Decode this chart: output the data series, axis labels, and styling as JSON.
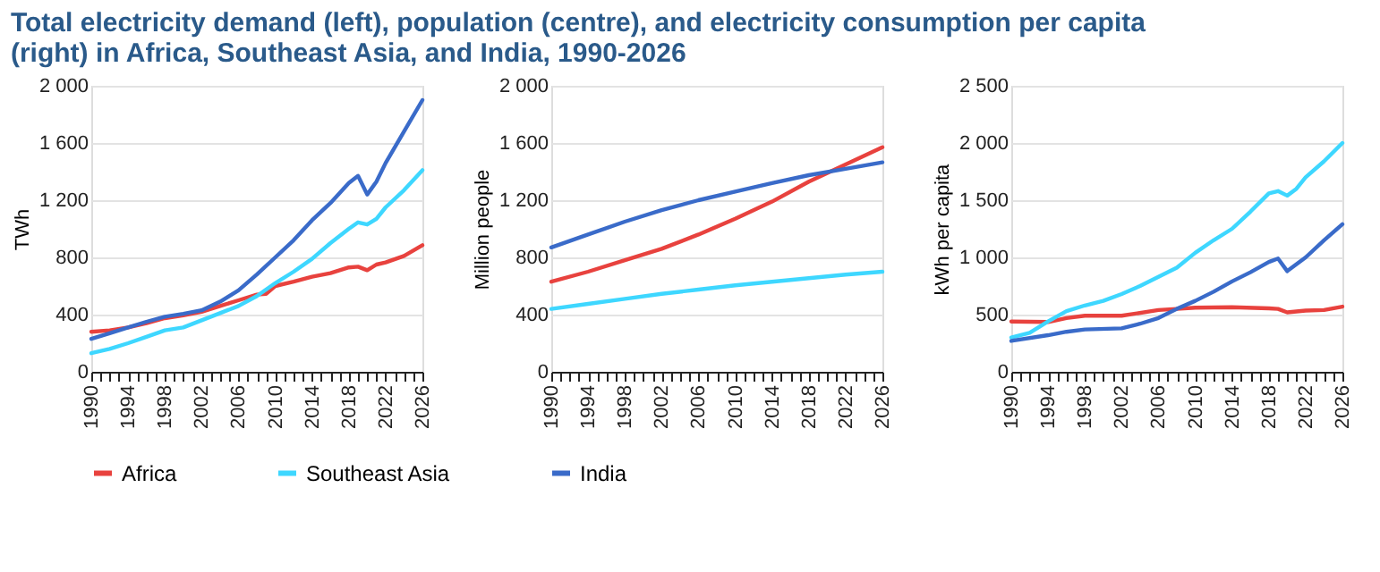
{
  "chart_data": [
    {
      "type": "line",
      "title": "Total electricity demand (left), population (centre), and electricity consumption per capita (right) in Africa, Southeast Asia, and India, 1990-2026",
      "ylabel": "TWh",
      "legend": "bottom",
      "grid": "y",
      "xlim": [
        1990,
        2026
      ],
      "ylim": [
        0,
        2000
      ],
      "xticks": [
        1990,
        {
          "value": 1991,
          "label": null
        },
        {
          "value": 1992,
          "label": null
        },
        {
          "value": 1993,
          "label": null
        },
        1994,
        {
          "value": 1995,
          "label": null
        },
        {
          "value": 1996,
          "label": null
        },
        {
          "value": 1997,
          "label": null
        },
        1998,
        {
          "value": 1999,
          "label": null
        },
        {
          "value": 2000,
          "label": null
        },
        {
          "value": 2001,
          "label": null
        },
        2002,
        {
          "value": 2003,
          "label": null
        },
        {
          "value": 2004,
          "label": null
        },
        {
          "value": 2005,
          "label": null
        },
        2006,
        {
          "value": 2007,
          "label": null
        },
        {
          "value": 2008,
          "label": null
        },
        {
          "value": 2009,
          "label": null
        },
        2010,
        {
          "value": 2011,
          "label": null
        },
        {
          "value": 2012,
          "label": null
        },
        {
          "value": 2013,
          "label": null
        },
        2014,
        {
          "value": 2015,
          "label": null
        },
        {
          "value": 2016,
          "label": null
        },
        {
          "value": 2017,
          "label": null
        },
        2018,
        {
          "value": 2019,
          "label": null
        },
        {
          "value": 2020,
          "label": null
        },
        {
          "value": 2021,
          "label": null
        },
        2022,
        {
          "value": 2023,
          "label": null
        },
        {
          "value": 2024,
          "label": null
        },
        {
          "value": 2025,
          "label": null
        },
        2026
      ],
      "yticks": [
        0,
        400,
        800,
        {
          "value": 1200,
          "label": "1 200"
        },
        {
          "value": 1600,
          "label": "1 600"
        },
        {
          "value": 2000,
          "label": "2 000"
        }
      ],
      "series": [
        {
          "name": "Africa",
          "color": "#e8423e",
          "x": [
            1990,
            1992,
            1994,
            1996,
            1998,
            2000,
            2002,
            2004,
            2006,
            2008,
            2009,
            2010,
            2012,
            2014,
            2016,
            2018,
            2019,
            2020,
            2021,
            2022,
            2024,
            2026
          ],
          "values": [
            280,
            290,
            310,
            340,
            375,
            395,
            420,
            460,
            500,
            540,
            545,
            600,
            630,
            665,
            690,
            730,
            735,
            710,
            750,
            765,
            810,
            885
          ]
        },
        {
          "name": "Southeast Asia",
          "color": "#3ed7ff",
          "x": [
            1990,
            1992,
            1994,
            1996,
            1998,
            2000,
            2002,
            2004,
            2006,
            2008,
            2010,
            2012,
            2014,
            2016,
            2018,
            2019,
            2020,
            2021,
            2022,
            2024,
            2026
          ],
          "values": [
            130,
            160,
            200,
            245,
            290,
            310,
            360,
            410,
            460,
            530,
            620,
            700,
            790,
            900,
            1000,
            1045,
            1030,
            1070,
            1150,
            1270,
            1410
          ]
        },
        {
          "name": "India",
          "color": "#3a6bc9",
          "x": [
            1990,
            1992,
            1994,
            1996,
            1998,
            2000,
            2002,
            2004,
            2006,
            2008,
            2010,
            2012,
            2014,
            2016,
            2018,
            2019,
            2020,
            2021,
            2022,
            2024,
            2026
          ],
          "values": [
            230,
            270,
            310,
            350,
            385,
            405,
            430,
            490,
            570,
            680,
            800,
            920,
            1060,
            1180,
            1320,
            1370,
            1240,
            1330,
            1460,
            1680,
            1900
          ]
        }
      ]
    },
    {
      "type": "line",
      "ylabel": "Million people",
      "legend": "bottom",
      "grid": "y",
      "xlim": [
        1990,
        2026
      ],
      "ylim": [
        0,
        2000
      ],
      "xticks": [
        1990,
        {
          "value": 1991,
          "label": null
        },
        {
          "value": 1992,
          "label": null
        },
        {
          "value": 1993,
          "label": null
        },
        1994,
        {
          "value": 1995,
          "label": null
        },
        {
          "value": 1996,
          "label": null
        },
        {
          "value": 1997,
          "label": null
        },
        1998,
        {
          "value": 1999,
          "label": null
        },
        {
          "value": 2000,
          "label": null
        },
        {
          "value": 2001,
          "label": null
        },
        2002,
        {
          "value": 2003,
          "label": null
        },
        {
          "value": 2004,
          "label": null
        },
        {
          "value": 2005,
          "label": null
        },
        2006,
        {
          "value": 2007,
          "label": null
        },
        {
          "value": 2008,
          "label": null
        },
        {
          "value": 2009,
          "label": null
        },
        2010,
        {
          "value": 2011,
          "label": null
        },
        {
          "value": 2012,
          "label": null
        },
        {
          "value": 2013,
          "label": null
        },
        2014,
        {
          "value": 2015,
          "label": null
        },
        {
          "value": 2016,
          "label": null
        },
        {
          "value": 2017,
          "label": null
        },
        2018,
        {
          "value": 2019,
          "label": null
        },
        {
          "value": 2020,
          "label": null
        },
        {
          "value": 2021,
          "label": null
        },
        2022,
        {
          "value": 2023,
          "label": null
        },
        {
          "value": 2024,
          "label": null
        },
        {
          "value": 2025,
          "label": null
        },
        2026
      ],
      "yticks": [
        0,
        400,
        800,
        {
          "value": 1200,
          "label": "1 200"
        },
        {
          "value": 1600,
          "label": "1 600"
        },
        {
          "value": 2000,
          "label": "2 000"
        }
      ],
      "series": [
        {
          "name": "Africa",
          "color": "#e8423e",
          "x": [
            1990,
            1994,
            1998,
            2002,
            2006,
            2010,
            2014,
            2018,
            2022,
            2026
          ],
          "values": [
            630,
            700,
            780,
            860,
            960,
            1070,
            1190,
            1330,
            1450,
            1570
          ]
        },
        {
          "name": "Southeast Asia",
          "color": "#3ed7ff",
          "x": [
            1990,
            1994,
            1998,
            2002,
            2006,
            2010,
            2014,
            2018,
            2022,
            2026
          ],
          "values": [
            440,
            475,
            510,
            545,
            575,
            605,
            630,
            655,
            680,
            700
          ]
        },
        {
          "name": "India",
          "color": "#3a6bc9",
          "x": [
            1990,
            1994,
            1998,
            2002,
            2006,
            2010,
            2014,
            2018,
            2022,
            2026
          ],
          "values": [
            870,
            960,
            1050,
            1130,
            1200,
            1260,
            1320,
            1375,
            1420,
            1465
          ]
        }
      ]
    },
    {
      "type": "line",
      "ylabel": "kWh per capita",
      "legend": "bottom",
      "grid": "y",
      "xlim": [
        1990,
        2026
      ],
      "ylim": [
        0,
        2500
      ],
      "xticks": [
        1990,
        {
          "value": 1991,
          "label": null
        },
        {
          "value": 1992,
          "label": null
        },
        {
          "value": 1993,
          "label": null
        },
        1994,
        {
          "value": 1995,
          "label": null
        },
        {
          "value": 1996,
          "label": null
        },
        {
          "value": 1997,
          "label": null
        },
        1998,
        {
          "value": 1999,
          "label": null
        },
        {
          "value": 2000,
          "label": null
        },
        {
          "value": 2001,
          "label": null
        },
        2002,
        {
          "value": 2003,
          "label": null
        },
        {
          "value": 2004,
          "label": null
        },
        {
          "value": 2005,
          "label": null
        },
        2006,
        {
          "value": 2007,
          "label": null
        },
        {
          "value": 2008,
          "label": null
        },
        {
          "value": 2009,
          "label": null
        },
        2010,
        {
          "value": 2011,
          "label": null
        },
        {
          "value": 2012,
          "label": null
        },
        {
          "value": 2013,
          "label": null
        },
        2014,
        {
          "value": 2015,
          "label": null
        },
        {
          "value": 2016,
          "label": null
        },
        {
          "value": 2017,
          "label": null
        },
        2018,
        {
          "value": 2019,
          "label": null
        },
        {
          "value": 2020,
          "label": null
        },
        {
          "value": 2021,
          "label": null
        },
        2022,
        {
          "value": 2023,
          "label": null
        },
        {
          "value": 2024,
          "label": null
        },
        {
          "value": 2025,
          "label": null
        },
        2026
      ],
      "yticks": [
        0,
        500,
        {
          "value": 1000,
          "label": "1 000"
        },
        {
          "value": 1500,
          "label": "1 500"
        },
        {
          "value": 2000,
          "label": "2 000"
        },
        {
          "value": 2500,
          "label": "2 500"
        }
      ],
      "series": [
        {
          "name": "Africa",
          "color": "#e8423e",
          "x": [
            1990,
            1994,
            1996,
            1998,
            2002,
            2006,
            2008,
            2010,
            2014,
            2018,
            2019,
            2020,
            2022,
            2024,
            2026
          ],
          "values": [
            440,
            435,
            470,
            490,
            490,
            540,
            550,
            560,
            565,
            555,
            550,
            520,
            535,
            540,
            570
          ]
        },
        {
          "name": "Southeast Asia",
          "color": "#3ed7ff",
          "x": [
            1990,
            1992,
            1994,
            1996,
            1998,
            2000,
            2002,
            2004,
            2006,
            2008,
            2010,
            2012,
            2014,
            2016,
            2018,
            2019,
            2020,
            2021,
            2022,
            2024,
            2026
          ],
          "values": [
            300,
            340,
            440,
            530,
            580,
            620,
            680,
            750,
            830,
            910,
            1040,
            1150,
            1250,
            1400,
            1560,
            1580,
            1540,
            1600,
            1700,
            1840,
            2000
          ]
        },
        {
          "name": "India",
          "color": "#3a6bc9",
          "x": [
            1990,
            1994,
            1996,
            1998,
            2002,
            2004,
            2006,
            2008,
            2010,
            2012,
            2014,
            2016,
            2018,
            2019,
            2020,
            2022,
            2024,
            2026
          ],
          "values": [
            270,
            320,
            350,
            370,
            380,
            420,
            470,
            550,
            620,
            700,
            790,
            870,
            960,
            990,
            880,
            1000,
            1150,
            1290
          ]
        }
      ]
    }
  ]
}
